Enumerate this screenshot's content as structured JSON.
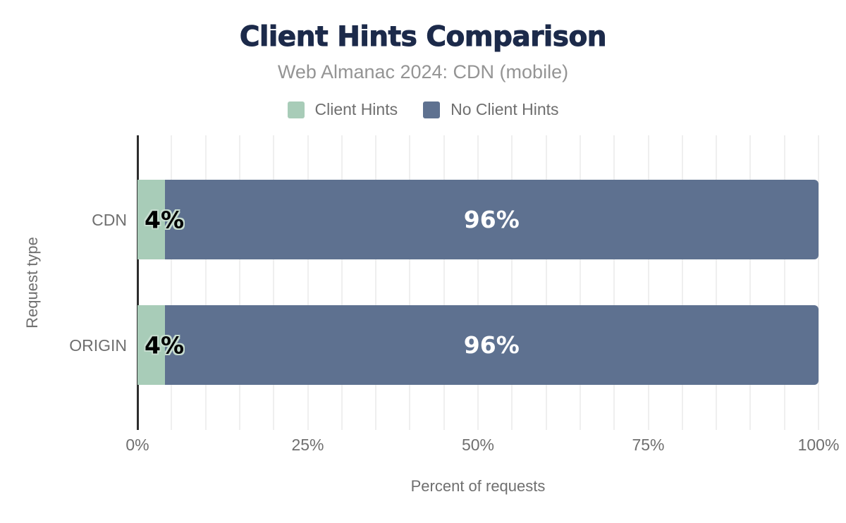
{
  "colors": {
    "title": "#1c2a4a",
    "subtitle": "#949494",
    "text": "#6f6f6f",
    "axis_line": "#2e2e2e",
    "grid": "#efefef",
    "value_halo": "#c6dccf",
    "value_dark": "#000000",
    "value_light": "#ffffff"
  },
  "chart_data": {
    "type": "bar",
    "orientation": "horizontal",
    "stacked": true,
    "title": "Client Hints Comparison",
    "subtitle": "Web Almanac 2024: CDN (mobile)",
    "xlabel": "Percent of requests",
    "ylabel": "Request type",
    "categories": [
      "CDN",
      "ORIGIN"
    ],
    "series": [
      {
        "name": "Client Hints",
        "color": "#a8ccb8",
        "values": [
          4,
          4
        ],
        "labels": [
          "4%",
          "4%"
        ],
        "label_style": "dark-halo-start"
      },
      {
        "name": "No Client Hints",
        "color": "#5e7190",
        "values": [
          96,
          96
        ],
        "labels": [
          "96%",
          "96%"
        ],
        "label_style": "light-centered"
      }
    ],
    "xlim": [
      0,
      100
    ],
    "x_ticks": [
      {
        "value": 0,
        "label": "0%"
      },
      {
        "value": 25,
        "label": "25%"
      },
      {
        "value": 50,
        "label": "50%"
      },
      {
        "value": 75,
        "label": "75%"
      },
      {
        "value": 100,
        "label": "100%"
      }
    ],
    "grid": true,
    "grid_step": 5,
    "legend_position": "top"
  }
}
